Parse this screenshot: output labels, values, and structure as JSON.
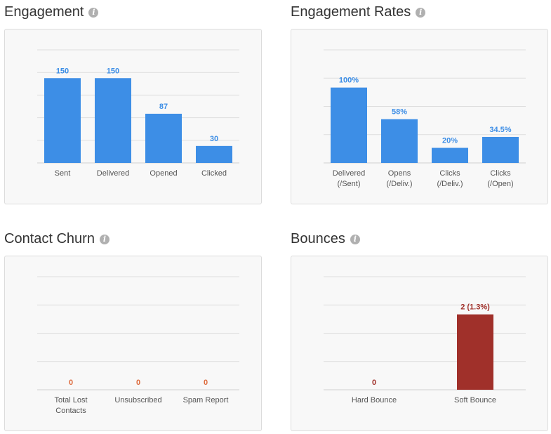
{
  "chart_data": [
    {
      "type": "bar",
      "title": "Engagement",
      "categories": [
        [
          "Sent"
        ],
        [
          "Delivered"
        ],
        [
          "Opened"
        ],
        [
          "Clicked"
        ]
      ],
      "values": [
        150,
        150,
        87,
        30
      ],
      "value_labels": [
        "150",
        "150",
        "87",
        "30"
      ],
      "ylim": [
        0,
        200
      ],
      "grid_lines": 5,
      "bar_color": "#3d8ee6",
      "label_color": "#3d8ee6",
      "grid": true,
      "legend": "none"
    },
    {
      "type": "bar",
      "title": "Engagement Rates",
      "categories": [
        [
          "Delivered",
          "(/Sent)"
        ],
        [
          "Opens",
          "(/Deliv.)"
        ],
        [
          "Clicks",
          "(/Deliv.)"
        ],
        [
          "Clicks",
          "(/Open)"
        ]
      ],
      "values": [
        100,
        58,
        20,
        34.5
      ],
      "value_labels": [
        "100%",
        "58%",
        "20%",
        "34.5%"
      ],
      "ylim": [
        0,
        150
      ],
      "grid_lines": 4,
      "bar_color": "#3d8ee6",
      "label_color": "#3d8ee6",
      "grid": true,
      "legend": "none"
    },
    {
      "type": "bar",
      "title": "Contact Churn",
      "categories": [
        [
          "Total Lost",
          "Contacts"
        ],
        [
          "Unsubscribed"
        ],
        [
          "Spam Report"
        ]
      ],
      "values": [
        0,
        0,
        0
      ],
      "value_labels": [
        "0",
        "0",
        "0"
      ],
      "ylim": [
        0,
        3
      ],
      "grid_lines": 4,
      "bar_color": "#dd6b3d",
      "label_color": "#dd6b3d",
      "grid": true,
      "legend": "none"
    },
    {
      "type": "bar",
      "title": "Bounces",
      "categories": [
        [
          "Hard Bounce"
        ],
        [
          "Soft Bounce"
        ]
      ],
      "values": [
        0,
        2
      ],
      "value_labels": [
        "0",
        "2 (1.3%)"
      ],
      "ylim": [
        0,
        3
      ],
      "grid_lines": 4,
      "bar_color": "#a0302a",
      "label_color": "#a0302a",
      "grid": true,
      "legend": "none"
    }
  ],
  "icons": {
    "info": "info-icon"
  },
  "info_glyph": "i"
}
